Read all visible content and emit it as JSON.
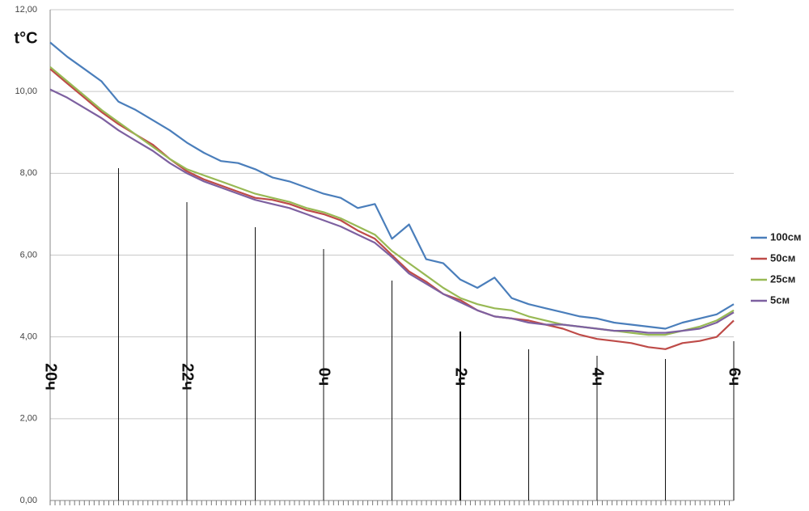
{
  "chart_data": {
    "type": "line",
    "y_label": "t°C",
    "xlim": [
      20,
      30
    ],
    "xticks": [
      {
        "value": 20,
        "label": "20ч"
      },
      {
        "value": 22,
        "label": "22ч"
      },
      {
        "value": 24,
        "label": "0ч"
      },
      {
        "value": 26,
        "label": "2ч"
      },
      {
        "value": 28,
        "label": "4ч"
      },
      {
        "value": 30,
        "label": "6ч"
      }
    ],
    "ylim": [
      0,
      12
    ],
    "yticks": [
      {
        "value": 0,
        "label": "0,00"
      },
      {
        "value": 2,
        "label": "2,00"
      },
      {
        "value": 4,
        "label": "4,00"
      },
      {
        "value": 6,
        "label": "6,00"
      },
      {
        "value": 8,
        "label": "8,00"
      },
      {
        "value": 10,
        "label": "10,00"
      },
      {
        "value": 12,
        "label": "12,00"
      }
    ],
    "grid": true,
    "legend": "right",
    "x": [
      20,
      20.25,
      20.5,
      20.75,
      21,
      21.25,
      21.5,
      21.75,
      22,
      22.25,
      22.5,
      22.75,
      23,
      23.25,
      23.5,
      23.75,
      24,
      24.25,
      24.5,
      24.75,
      25,
      25.25,
      25.5,
      25.75,
      26,
      26.25,
      26.5,
      26.75,
      27,
      27.25,
      27.5,
      27.75,
      28,
      28.25,
      28.5,
      28.75,
      29,
      29.25,
      29.5,
      29.75,
      30
    ],
    "series": [
      {
        "name": "100см",
        "color": "#4a7ebb",
        "values": [
          11.2,
          10.85,
          10.55,
          10.25,
          9.75,
          9.55,
          9.3,
          9.05,
          8.75,
          8.5,
          8.3,
          8.25,
          8.1,
          7.9,
          7.8,
          7.65,
          7.5,
          7.4,
          7.15,
          7.25,
          6.4,
          6.75,
          5.9,
          5.8,
          5.4,
          5.2,
          5.45,
          4.95,
          4.8,
          4.7,
          4.6,
          4.5,
          4.45,
          4.35,
          4.3,
          4.25,
          4.2,
          4.35,
          4.45,
          4.55,
          4.8
        ]
      },
      {
        "name": "50см",
        "color": "#be4b48",
        "values": [
          10.55,
          10.2,
          9.85,
          9.5,
          9.2,
          8.95,
          8.7,
          8.35,
          8.05,
          7.85,
          7.7,
          7.55,
          7.4,
          7.35,
          7.25,
          7.1,
          7.0,
          6.85,
          6.6,
          6.4,
          6.0,
          5.6,
          5.35,
          5.05,
          4.9,
          4.65,
          4.5,
          4.45,
          4.4,
          4.3,
          4.2,
          4.05,
          3.95,
          3.9,
          3.85,
          3.75,
          3.7,
          3.85,
          3.9,
          4.0,
          4.4
        ]
      },
      {
        "name": "25см",
        "color": "#98b954",
        "values": [
          10.6,
          10.25,
          9.9,
          9.55,
          9.25,
          8.95,
          8.65,
          8.35,
          8.1,
          7.95,
          7.8,
          7.65,
          7.5,
          7.4,
          7.3,
          7.15,
          7.05,
          6.9,
          6.7,
          6.5,
          6.1,
          5.8,
          5.5,
          5.2,
          4.95,
          4.8,
          4.7,
          4.65,
          4.5,
          4.4,
          4.3,
          4.25,
          4.2,
          4.15,
          4.1,
          4.05,
          4.05,
          4.15,
          4.25,
          4.4,
          4.65
        ]
      },
      {
        "name": "5см",
        "color": "#7d60a0",
        "values": [
          10.05,
          9.85,
          9.6,
          9.35,
          9.05,
          8.8,
          8.55,
          8.25,
          8.0,
          7.8,
          7.65,
          7.5,
          7.35,
          7.25,
          7.15,
          7.0,
          6.85,
          6.7,
          6.5,
          6.3,
          5.95,
          5.55,
          5.3,
          5.05,
          4.85,
          4.65,
          4.5,
          4.45,
          4.35,
          4.3,
          4.3,
          4.25,
          4.2,
          4.15,
          4.15,
          4.1,
          4.1,
          4.15,
          4.2,
          4.35,
          4.6
        ]
      }
    ]
  }
}
